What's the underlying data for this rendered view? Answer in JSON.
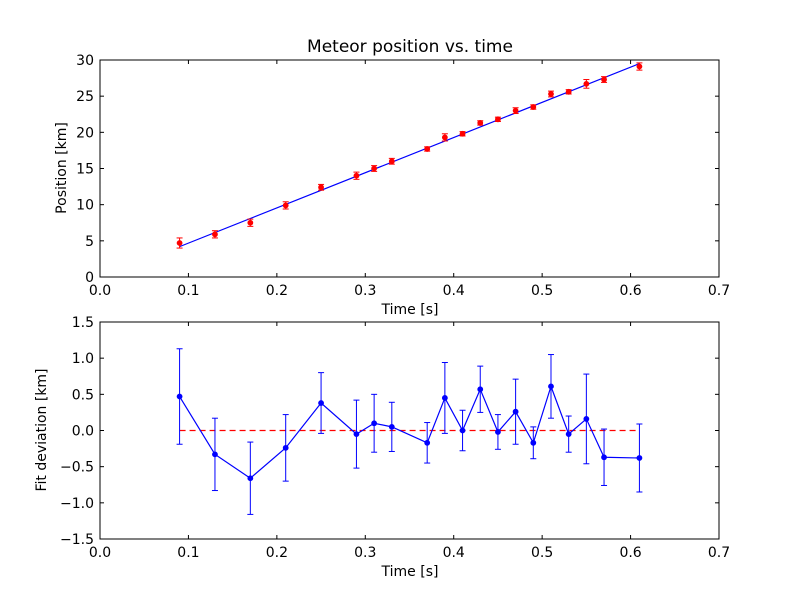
{
  "chart_data": [
    {
      "type": "scatter",
      "title": "Meteor position vs. time",
      "xlabel": "Time [s]",
      "ylabel": "Position [km]",
      "xlim": [
        0.0,
        0.7
      ],
      "ylim": [
        0,
        30
      ],
      "xticks": [
        "0.0",
        "0.1",
        "0.2",
        "0.3",
        "0.4",
        "0.5",
        "0.6",
        "0.7"
      ],
      "xtick_values": [
        0.0,
        0.1,
        0.2,
        0.3,
        0.4,
        0.5,
        0.6,
        0.7
      ],
      "yticks": [
        "0",
        "5",
        "10",
        "15",
        "20",
        "25",
        "30"
      ],
      "ytick_values": [
        0,
        5,
        10,
        15,
        20,
        25,
        30
      ],
      "grid": false,
      "series": [
        {
          "kind": "errorbar-points",
          "color": "#ff0000",
          "x": [
            0.09,
            0.13,
            0.17,
            0.21,
            0.25,
            0.29,
            0.31,
            0.33,
            0.37,
            0.39,
            0.41,
            0.43,
            0.45,
            0.47,
            0.49,
            0.51,
            0.53,
            0.55,
            0.57,
            0.61
          ],
          "y": [
            4.7,
            5.9,
            7.5,
            9.9,
            12.4,
            14.0,
            15.0,
            16.0,
            17.7,
            19.3,
            19.8,
            21.3,
            21.8,
            23.0,
            23.5,
            25.3,
            25.6,
            26.7,
            27.3,
            29.1
          ],
          "yerr": [
            0.7,
            0.5,
            0.5,
            0.5,
            0.4,
            0.5,
            0.4,
            0.4,
            0.3,
            0.5,
            0.3,
            0.3,
            0.3,
            0.4,
            0.3,
            0.4,
            0.3,
            0.6,
            0.4,
            0.5
          ]
        },
        {
          "kind": "fit-line",
          "color": "#0000ff",
          "x": [
            0.09,
            0.61
          ],
          "y": [
            4.2,
            29.5
          ]
        }
      ]
    },
    {
      "type": "line",
      "title": "",
      "xlabel": "Time [s]",
      "ylabel": "Fit deviation [km]",
      "xlim": [
        0.0,
        0.7
      ],
      "ylim": [
        -1.5,
        1.5
      ],
      "xticks": [
        "0.0",
        "0.1",
        "0.2",
        "0.3",
        "0.4",
        "0.5",
        "0.6",
        "0.7"
      ],
      "xtick_values": [
        0.0,
        0.1,
        0.2,
        0.3,
        0.4,
        0.5,
        0.6,
        0.7
      ],
      "yticks": [
        "1.5",
        "1.0",
        "0.5",
        "0.0",
        "−0.5",
        "−1.0",
        "−1.5"
      ],
      "ytick_values": [
        1.5,
        1.0,
        0.5,
        0.0,
        -0.5,
        -1.0,
        -1.5
      ],
      "grid": false,
      "series": [
        {
          "kind": "errorbar-line",
          "color": "#0000ff",
          "x": [
            0.09,
            0.13,
            0.17,
            0.21,
            0.25,
            0.29,
            0.31,
            0.33,
            0.37,
            0.39,
            0.41,
            0.43,
            0.45,
            0.47,
            0.49,
            0.51,
            0.53,
            0.55,
            0.57,
            0.61
          ],
          "y": [
            0.47,
            -0.33,
            -0.66,
            -0.24,
            0.38,
            -0.05,
            0.1,
            0.05,
            -0.17,
            0.45,
            0.0,
            0.57,
            -0.02,
            0.26,
            -0.17,
            0.61,
            -0.05,
            0.16,
            -0.37,
            -0.38
          ],
          "yerr": [
            0.66,
            0.5,
            0.5,
            0.46,
            0.42,
            0.47,
            0.4,
            0.34,
            0.28,
            0.49,
            0.28,
            0.32,
            0.24,
            0.45,
            0.22,
            0.44,
            0.25,
            0.62,
            0.39,
            0.47
          ]
        },
        {
          "kind": "zero-line",
          "color": "#ff0000",
          "dashed": true,
          "x": [
            0.09,
            0.61
          ],
          "y": [
            0.0,
            0.0
          ]
        }
      ]
    }
  ]
}
